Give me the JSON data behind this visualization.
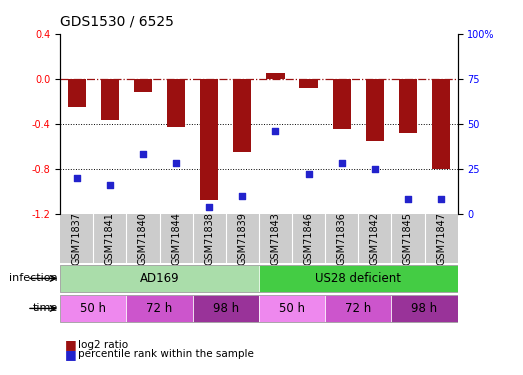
{
  "title": "GDS1530 / 6525",
  "samples": [
    "GSM71837",
    "GSM71841",
    "GSM71840",
    "GSM71844",
    "GSM71838",
    "GSM71839",
    "GSM71843",
    "GSM71846",
    "GSM71836",
    "GSM71842",
    "GSM71845",
    "GSM71847"
  ],
  "log2_ratio": [
    -0.25,
    -0.37,
    -0.12,
    -0.43,
    -1.08,
    -0.65,
    0.05,
    -0.08,
    -0.45,
    -0.55,
    -0.48,
    -0.8
  ],
  "percentile_rank": [
    20,
    16,
    33,
    28,
    4,
    10,
    46,
    22,
    28,
    25,
    8,
    8
  ],
  "infection_groups": [
    {
      "label": "AD169",
      "start": 0,
      "end": 6,
      "color": "#aaddaa"
    },
    {
      "label": "US28 deficient",
      "start": 6,
      "end": 12,
      "color": "#44cc44"
    }
  ],
  "time_groups": [
    {
      "label": "50 h",
      "start": 0,
      "end": 2,
      "color": "#ee88ee"
    },
    {
      "label": "72 h",
      "start": 2,
      "end": 4,
      "color": "#cc55cc"
    },
    {
      "label": "98 h",
      "start": 4,
      "end": 6,
      "color": "#aa22aa"
    },
    {
      "label": "50 h",
      "start": 6,
      "end": 8,
      "color": "#ee88ee"
    },
    {
      "label": "72 h",
      "start": 8,
      "end": 10,
      "color": "#cc55cc"
    },
    {
      "label": "98 h",
      "start": 10,
      "end": 12,
      "color": "#aa22aa"
    }
  ],
  "bar_color": "#9B1010",
  "dot_color": "#2222CC",
  "ylim_left": [
    -1.2,
    0.4
  ],
  "ylim_right": [
    0,
    100
  ],
  "yticks_left": [
    -1.2,
    -0.8,
    -0.4,
    0.0,
    0.4
  ],
  "yticks_right": [
    0,
    25,
    50,
    75,
    100
  ],
  "hline_y": 0.0,
  "dotted_lines": [
    -0.4,
    -0.8
  ],
  "bar_width": 0.55,
  "title_fontsize": 10,
  "tick_fontsize": 7,
  "label_fontsize": 8,
  "legend_fontsize": 7.5,
  "annotation_fontsize": 8.5
}
